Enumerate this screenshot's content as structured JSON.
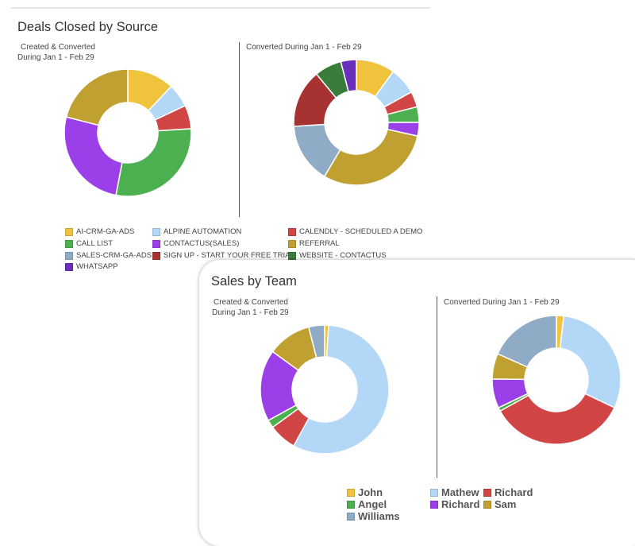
{
  "deals_card": {
    "title": "Deals Closed by Source",
    "left_caption_line1": "Created & Converted",
    "left_caption_line2": "During Jan 1 - Feb 29",
    "right_caption": "Converted During Jan 1 - Feb 29"
  },
  "sales_card": {
    "title": "Sales by Team",
    "left_caption_line1": "Created & Converted",
    "left_caption_line2": "During Jan 1 - Feb 29",
    "right_caption": "Converted During Jan 1 - Feb 29"
  },
  "chart_data": [
    {
      "type": "pie",
      "style": "donut",
      "title": "Deals Closed by Source",
      "subtitle": "Created & Converted During Jan 1 - Feb 29",
      "categories": [
        "AI-CRM-GA-ADS",
        "ALPINE AUTOMATION",
        "CALENDLY - SCHEDULED A DEMO",
        "CALL LIST",
        "CONTACTUS(SALES)",
        "SIGN UP - START YOUR FREE TRIAL",
        "WHATSAPP",
        "REFERRAL"
      ],
      "values": [
        12,
        6,
        6,
        29,
        26,
        0,
        0,
        21
      ],
      "colors": [
        "#f0c33c",
        "#b3d7f7",
        "#d14545",
        "#4caf50",
        "#9b3fe8",
        "#a63232",
        "#6a2fbd",
        "#c0a030"
      ]
    },
    {
      "type": "pie",
      "style": "donut",
      "title": "Deals Closed by Source",
      "subtitle": "Converted During Jan 1 - Feb 29",
      "categories": [
        "AI-CRM-GA-ADS",
        "ALPINE AUTOMATION",
        "CALENDLY - SCHEDULED A DEMO",
        "CALL LIST",
        "CONTACTUS(SALES)",
        "REFERRAL",
        "SALES-CRM-GA-ADS",
        "SIGN UP - START YOUR FREE TRIAL",
        "WEBSITE - CONTACTUS",
        "WHATSAPP"
      ],
      "values": [
        10,
        7,
        4,
        4,
        3.5,
        30,
        15.5,
        15,
        7,
        4
      ],
      "colors": [
        "#f0c33c",
        "#b3d7f7",
        "#d14545",
        "#4caf50",
        "#9b3fe8",
        "#c0a030",
        "#8fabc6",
        "#a63232",
        "#3a7d3a",
        "#6a2fbd"
      ]
    },
    {
      "type": "pie",
      "style": "donut",
      "title": "Sales by Team",
      "subtitle": "Created & Converted During Jan 1 - Feb 29",
      "categories": [
        "John",
        "Mathew",
        "Richard",
        "Angel",
        "Richard",
        "Sam",
        "Williams"
      ],
      "values": [
        1,
        57,
        7,
        2,
        18,
        11,
        4
      ],
      "colors": [
        "#f0c33c",
        "#b3d7f7",
        "#d14545",
        "#4caf50",
        "#9b3fe8",
        "#c0a030",
        "#8fabc6"
      ]
    },
    {
      "type": "pie",
      "style": "donut",
      "title": "Sales by Team",
      "subtitle": "Converted During Jan 1 - Feb 29",
      "categories": [
        "John",
        "Mathew",
        "Richard",
        "Angel",
        "Richard",
        "Sam",
        "Williams"
      ],
      "values": [
        2,
        33,
        38,
        1,
        8,
        7,
        20
      ],
      "colors": [
        "#f0c33c",
        "#b3d7f7",
        "#d14545",
        "#4caf50",
        "#9b3fe8",
        "#c0a030",
        "#8fabc6"
      ]
    }
  ],
  "legend_sources": [
    {
      "label": "AI-CRM-GA-ADS",
      "color": "#f0c33c"
    },
    {
      "label": "ALPINE AUTOMATION",
      "color": "#b3d7f7"
    },
    {
      "label": "CALENDLY - SCHEDULED A DEMO",
      "color": "#d14545"
    },
    {
      "label": "CALL LIST",
      "color": "#4caf50"
    },
    {
      "label": "CONTACTUS(SALES)",
      "color": "#9b3fe8"
    },
    {
      "label": "REFERRAL",
      "color": "#c0a030"
    },
    {
      "label": "SALES-CRM-GA-ADS",
      "color": "#8fabc6"
    },
    {
      "label": "SIGN UP - START YOUR FREE TRIAL",
      "color": "#a63232"
    },
    {
      "label": "WEBSITE - CONTACTUS",
      "color": "#3a7d3a"
    },
    {
      "label": "WHATSAPP",
      "color": "#6a2fbd"
    }
  ],
  "legend_team": [
    {
      "label": "John",
      "color": "#f0c33c"
    },
    {
      "label": "Mathew",
      "color": "#b3d7f7"
    },
    {
      "label": "Richard",
      "color": "#d14545"
    },
    {
      "label": "Angel",
      "color": "#4caf50"
    },
    {
      "label": "Richard",
      "color": "#9b3fe8"
    },
    {
      "label": "Sam",
      "color": "#c0a030"
    },
    {
      "label": "Williams",
      "color": "#8fabc6"
    }
  ]
}
